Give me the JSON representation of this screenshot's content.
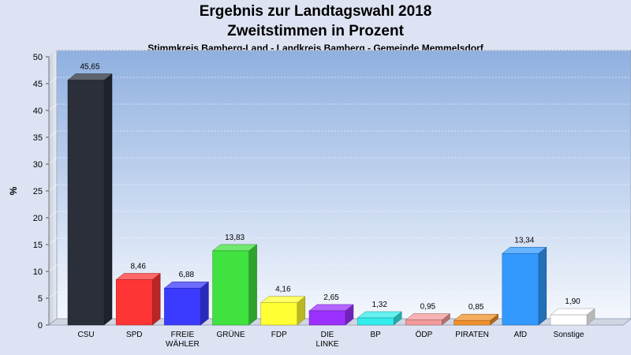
{
  "header": {
    "title": "Ergebnis zur Landtagswahl 2018",
    "subtitle": "Zweitstimmen in Prozent",
    "location": "Stimmkreis Bamberg-Land - Landkreis Bamberg - Gemeinde Memmelsdorf"
  },
  "chart_data": {
    "type": "bar",
    "title": "Ergebnis zur Landtagswahl 2018",
    "subtitle": "Zweitstimmen in Prozent",
    "xlabel": "",
    "ylabel": "%",
    "ylim": [
      0,
      50
    ],
    "yticks": [
      0,
      5,
      10,
      15,
      20,
      25,
      30,
      35,
      40,
      45,
      50
    ],
    "grid": true,
    "legend": "none",
    "categories": [
      "CSU",
      "SPD",
      "FREIE WÄHLER",
      "GRÜNE",
      "FDP",
      "DIE LINKE",
      "BP",
      "ÖDP",
      "PIRATEN",
      "AfD",
      "Sonstige"
    ],
    "category_lines": [
      [
        "CSU"
      ],
      [
        "SPD"
      ],
      [
        "FREIE",
        "WÄHLER"
      ],
      [
        "GRÜNE"
      ],
      [
        "FDP"
      ],
      [
        "DIE",
        "LINKE"
      ],
      [
        "BP"
      ],
      [
        "ÖDP"
      ],
      [
        "PIRATEN"
      ],
      [
        "AfD"
      ],
      [
        "Sonstige"
      ]
    ],
    "values": [
      45.65,
      8.46,
      6.88,
      13.83,
      4.16,
      2.65,
      1.32,
      0.95,
      0.85,
      13.34,
      1.9
    ],
    "value_labels": [
      "45,65",
      "8,46",
      "6,88",
      "13,83",
      "4,16",
      "2,65",
      "1,32",
      "0,95",
      "0,85",
      "13,34",
      "1,90"
    ],
    "colors": [
      "#2a2f3a",
      "#ff3535",
      "#3b3bff",
      "#3fe23f",
      "#ffff33",
      "#9b30ff",
      "#33ecec",
      "#f49a9a",
      "#f0902a",
      "#3399ff",
      "#ffffff"
    ]
  }
}
